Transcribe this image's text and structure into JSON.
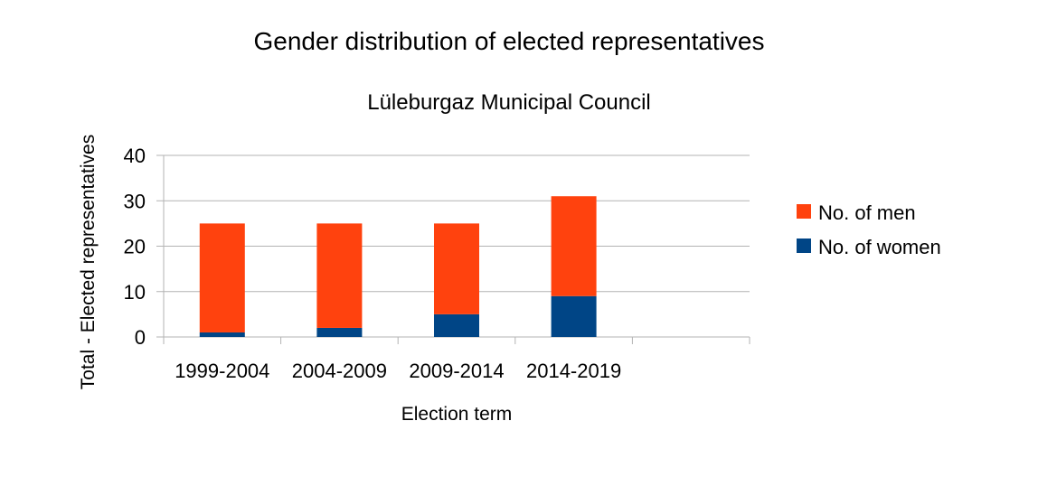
{
  "chart_data": {
    "type": "bar",
    "stacked": true,
    "title": "Gender distribution of elected representatives",
    "subtitle": "Lüleburgaz Municipal Council",
    "xlabel": "Election term",
    "ylabel": "Total - Elected representatives",
    "categories": [
      "1999-2004",
      "2004-2009",
      "2009-2014",
      "2014-2019",
      ""
    ],
    "series": [
      {
        "name": "No. of women",
        "color": "#004586",
        "values": [
          1,
          2,
          5,
          9,
          null
        ]
      },
      {
        "name": "No. of men",
        "color": "#ff420e",
        "values": [
          24,
          23,
          20,
          22,
          null
        ]
      }
    ],
    "legend_order": [
      "No. of men",
      "No. of women"
    ],
    "ylim": [
      0,
      40
    ],
    "yticks": [
      0,
      10,
      20,
      30,
      40
    ],
    "grid": true,
    "legend_position": "right"
  }
}
